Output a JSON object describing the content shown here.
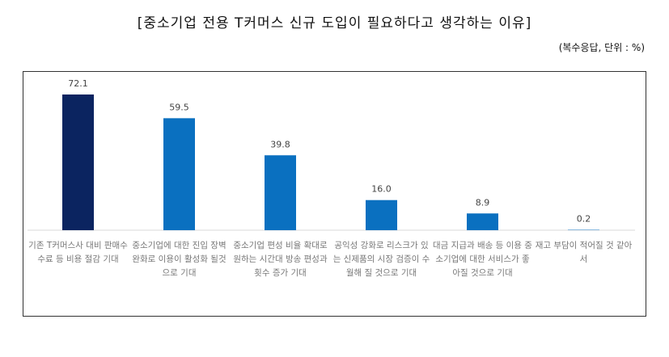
{
  "chart_data": {
    "type": "bar",
    "title": "[중소기업 전용 T커머스 신규 도입이 필요하다고 생각하는 이유]",
    "subtitle": "(복수응답, 단위 : %)",
    "categories": [
      "기존 T커머스사 대비 판매수수료 등 비용 절감 기대",
      "중소기업에 대한 진입 장벽 완화로 이용이 활성화 될것으로 기대",
      "중소기업 편성 비율 확대로 원하는 시간대 방송 편성과 횟수 증가 기대",
      "공익성 강화로 리스크가 있는 신제품의 시장 검증이 수월해 질 것으로 기대",
      "대금 지급과 배송 등 이용 중소기업에 대한 서비스가 좋아질 것으로 기대",
      "재고 부담이 적어질 것 같아서"
    ],
    "values": [
      72.1,
      59.5,
      39.8,
      16.0,
      8.9,
      0.2
    ],
    "labels": [
      "72.1",
      "59.5",
      "39.8",
      "16.0",
      "8.9",
      "0.2"
    ],
    "colors": [
      "#0b2460",
      "#0a70c0",
      "#0a70c0",
      "#0a70c0",
      "#0a70c0",
      "#0a70c0"
    ],
    "ylim": [
      0,
      80
    ],
    "grid": false
  }
}
